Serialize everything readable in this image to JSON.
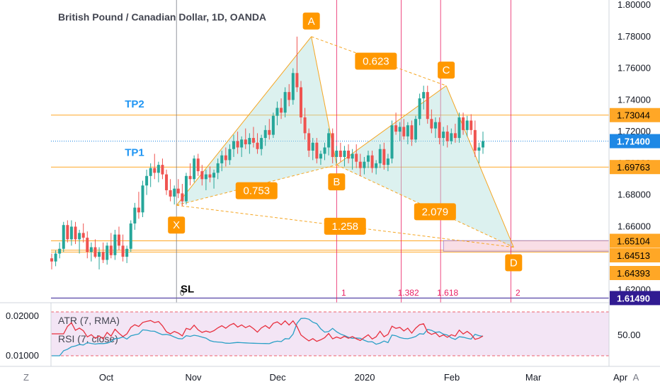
{
  "title": "British Pound / Canadian Dollar, 1D, OANDA",
  "colors": {
    "up": "#26a69a",
    "down": "#ef5350",
    "pattern_line": "#f5a623",
    "pattern_fill": "#b2dfdb",
    "label_bg": "#ff9800",
    "label_text": "#ffffff",
    "level_line": "#ffa726",
    "fib_line": "#e91e63",
    "tp_text": "#2196f3",
    "atr_line": "#2aa0c6",
    "rsi_line": "#e8303f",
    "rsi_band": "#f3e5f5",
    "current_price": "#1e88e5",
    "sl_line": "#311b92",
    "axis_text": "#131722"
  },
  "axis": {
    "price_ticks": [
      "1.80000",
      "1.78000",
      "1.76000",
      "1.74000",
      "1.72000",
      "1.70000",
      "1.68000",
      "1.66000",
      "1.64000",
      "1.62000"
    ],
    "time_labels": [
      "Oct",
      "Nov",
      "Dec",
      "2020",
      "Feb",
      "Mar",
      "Apr"
    ],
    "corner_left": "Z",
    "corner_right": "A"
  },
  "price_badges": [
    {
      "label": "1.73044",
      "style": "orange"
    },
    {
      "label": "1.71400",
      "style": "blue"
    },
    {
      "label": "1.69763",
      "style": "orange"
    },
    {
      "label": "1.65104",
      "style": "orange"
    },
    {
      "label": "1.64513",
      "style": "orange"
    },
    {
      "label": "1.64393",
      "style": "orange"
    },
    {
      "label": "1.61490",
      "style": "navy"
    }
  ],
  "pattern_points": [
    {
      "label": "X",
      "price": 1.6735
    },
    {
      "label": "A",
      "price": 1.78
    },
    {
      "label": "B",
      "price": 1.699
    },
    {
      "label": "C",
      "price": 1.749
    },
    {
      "label": "D",
      "price": 1.647
    }
  ],
  "ratios": [
    "0.623",
    "0.753",
    "2.079",
    "1.258"
  ],
  "tp_labels": [
    "TP2",
    "TP1"
  ],
  "sl_label": "SL",
  "fib_time_labels": [
    "0",
    "1",
    "1.382",
    "1.618",
    "2"
  ],
  "indicators": {
    "atr_label": "ATR (7, RMA)",
    "rsi_label": "RSI (7, close)",
    "left_ticks": [
      "0.02000",
      "0.01000"
    ],
    "right_tick": "50.00"
  },
  "chart_data": {
    "type": "candlestick",
    "title": "British Pound / Canadian Dollar, 1D, OANDA",
    "symbol": "GBPCAD",
    "interval": "1D",
    "source": "OANDA",
    "ylim": [
      1.605,
      1.805
    ],
    "x_range": [
      "2019-09-10",
      "2020-04-15"
    ],
    "last_price": 1.714,
    "harmonic_pattern": {
      "points": [
        {
          "label": "X",
          "date": "2019-10-26",
          "price": 1.6735
        },
        {
          "label": "A",
          "date": "2019-12-13",
          "price": 1.78
        },
        {
          "label": "B",
          "date": "2019-12-22",
          "price": 1.699
        },
        {
          "label": "C",
          "date": "2020-01-30",
          "price": 1.749
        },
        {
          "label": "D",
          "date": "2020-02-23",
          "price": 1.647
        }
      ],
      "ratios": [
        {
          "label": "0.623",
          "leg": "A-C"
        },
        {
          "label": "0.753",
          "leg": "X-B"
        },
        {
          "label": "2.079",
          "leg": "B-D"
        },
        {
          "label": "1.258",
          "leg": "X-D"
        }
      ]
    },
    "levels": [
      {
        "label": "TP2",
        "price": 1.73044
      },
      {
        "label": "TP1",
        "price": 1.69763
      },
      {
        "label": "",
        "price": 1.65104
      },
      {
        "label": "",
        "price": 1.64513
      },
      {
        "label": "",
        "price": 1.64393
      },
      {
        "label": "SL",
        "price": 1.6149
      }
    ],
    "fib_time_zones": [
      {
        "label": "0",
        "date": "2019-10-26"
      },
      {
        "label": "1",
        "date": "2019-12-22"
      },
      {
        "label": "1.382",
        "date": "2020-01-14"
      },
      {
        "label": "1.618",
        "date": "2020-01-28"
      },
      {
        "label": "2",
        "date": "2020-02-22"
      }
    ],
    "candles": [
      {
        "o": 1.64,
        "h": 1.643,
        "l": 1.633,
        "c": 1.638
      },
      {
        "o": 1.638,
        "h": 1.645,
        "l": 1.635,
        "c": 1.643
      },
      {
        "o": 1.643,
        "h": 1.65,
        "l": 1.64,
        "c": 1.646
      },
      {
        "o": 1.646,
        "h": 1.663,
        "l": 1.644,
        "c": 1.661
      },
      {
        "o": 1.661,
        "h": 1.664,
        "l": 1.65,
        "c": 1.652
      },
      {
        "o": 1.652,
        "h": 1.664,
        "l": 1.648,
        "c": 1.66
      },
      {
        "o": 1.66,
        "h": 1.663,
        "l": 1.649,
        "c": 1.652
      },
      {
        "o": 1.652,
        "h": 1.658,
        "l": 1.643,
        "c": 1.656
      },
      {
        "o": 1.656,
        "h": 1.662,
        "l": 1.65,
        "c": 1.653
      },
      {
        "o": 1.653,
        "h": 1.657,
        "l": 1.64,
        "c": 1.644
      },
      {
        "o": 1.644,
        "h": 1.65,
        "l": 1.638,
        "c": 1.647
      },
      {
        "o": 1.647,
        "h": 1.652,
        "l": 1.64,
        "c": 1.641
      },
      {
        "o": 1.641,
        "h": 1.647,
        "l": 1.633,
        "c": 1.644
      },
      {
        "o": 1.644,
        "h": 1.65,
        "l": 1.637,
        "c": 1.639
      },
      {
        "o": 1.639,
        "h": 1.65,
        "l": 1.636,
        "c": 1.648
      },
      {
        "o": 1.648,
        "h": 1.656,
        "l": 1.64,
        "c": 1.642
      },
      {
        "o": 1.642,
        "h": 1.658,
        "l": 1.639,
        "c": 1.655
      },
      {
        "o": 1.655,
        "h": 1.66,
        "l": 1.645,
        "c": 1.648
      },
      {
        "o": 1.648,
        "h": 1.655,
        "l": 1.638,
        "c": 1.641
      },
      {
        "o": 1.641,
        "h": 1.648,
        "l": 1.637,
        "c": 1.646
      },
      {
        "o": 1.646,
        "h": 1.664,
        "l": 1.644,
        "c": 1.662
      },
      {
        "o": 1.662,
        "h": 1.675,
        "l": 1.658,
        "c": 1.672
      },
      {
        "o": 1.672,
        "h": 1.682,
        "l": 1.665,
        "c": 1.669
      },
      {
        "o": 1.669,
        "h": 1.689,
        "l": 1.666,
        "c": 1.686
      },
      {
        "o": 1.686,
        "h": 1.696,
        "l": 1.68,
        "c": 1.692
      },
      {
        "o": 1.692,
        "h": 1.7,
        "l": 1.685,
        "c": 1.697
      },
      {
        "o": 1.697,
        "h": 1.706,
        "l": 1.69,
        "c": 1.694
      },
      {
        "o": 1.694,
        "h": 1.701,
        "l": 1.688,
        "c": 1.699
      },
      {
        "o": 1.699,
        "h": 1.703,
        "l": 1.69,
        "c": 1.693
      },
      {
        "o": 1.693,
        "h": 1.696,
        "l": 1.68,
        "c": 1.683
      },
      {
        "o": 1.683,
        "h": 1.69,
        "l": 1.676,
        "c": 1.679
      },
      {
        "o": 1.679,
        "h": 1.686,
        "l": 1.674,
        "c": 1.684
      },
      {
        "o": 1.684,
        "h": 1.69,
        "l": 1.678,
        "c": 1.681
      },
      {
        "o": 1.681,
        "h": 1.687,
        "l": 1.673,
        "c": 1.676
      },
      {
        "o": 1.676,
        "h": 1.694,
        "l": 1.674,
        "c": 1.692
      },
      {
        "o": 1.692,
        "h": 1.7,
        "l": 1.686,
        "c": 1.69
      },
      {
        "o": 1.69,
        "h": 1.705,
        "l": 1.688,
        "c": 1.703
      },
      {
        "o": 1.703,
        "h": 1.706,
        "l": 1.692,
        "c": 1.695
      },
      {
        "o": 1.695,
        "h": 1.699,
        "l": 1.686,
        "c": 1.69
      },
      {
        "o": 1.69,
        "h": 1.696,
        "l": 1.683,
        "c": 1.693
      },
      {
        "o": 1.693,
        "h": 1.698,
        "l": 1.688,
        "c": 1.691
      },
      {
        "o": 1.691,
        "h": 1.696,
        "l": 1.684,
        "c": 1.694
      },
      {
        "o": 1.694,
        "h": 1.703,
        "l": 1.69,
        "c": 1.7
      },
      {
        "o": 1.7,
        "h": 1.708,
        "l": 1.695,
        "c": 1.705
      },
      {
        "o": 1.705,
        "h": 1.71,
        "l": 1.698,
        "c": 1.702
      },
      {
        "o": 1.702,
        "h": 1.712,
        "l": 1.699,
        "c": 1.709
      },
      {
        "o": 1.709,
        "h": 1.718,
        "l": 1.704,
        "c": 1.714
      },
      {
        "o": 1.714,
        "h": 1.72,
        "l": 1.706,
        "c": 1.71
      },
      {
        "o": 1.71,
        "h": 1.717,
        "l": 1.704,
        "c": 1.715
      },
      {
        "o": 1.715,
        "h": 1.722,
        "l": 1.709,
        "c": 1.712
      },
      {
        "o": 1.712,
        "h": 1.719,
        "l": 1.706,
        "c": 1.716
      },
      {
        "o": 1.716,
        "h": 1.723,
        "l": 1.71,
        "c": 1.713
      },
      {
        "o": 1.713,
        "h": 1.719,
        "l": 1.706,
        "c": 1.709
      },
      {
        "o": 1.709,
        "h": 1.718,
        "l": 1.705,
        "c": 1.716
      },
      {
        "o": 1.716,
        "h": 1.724,
        "l": 1.711,
        "c": 1.721
      },
      {
        "o": 1.721,
        "h": 1.728,
        "l": 1.715,
        "c": 1.718
      },
      {
        "o": 1.718,
        "h": 1.732,
        "l": 1.716,
        "c": 1.73
      },
      {
        "o": 1.73,
        "h": 1.739,
        "l": 1.724,
        "c": 1.735
      },
      {
        "o": 1.735,
        "h": 1.741,
        "l": 1.728,
        "c": 1.732
      },
      {
        "o": 1.732,
        "h": 1.748,
        "l": 1.729,
        "c": 1.745
      },
      {
        "o": 1.745,
        "h": 1.75,
        "l": 1.736,
        "c": 1.74
      },
      {
        "o": 1.74,
        "h": 1.76,
        "l": 1.737,
        "c": 1.757
      },
      {
        "o": 1.757,
        "h": 1.78,
        "l": 1.745,
        "c": 1.748
      },
      {
        "o": 1.748,
        "h": 1.752,
        "l": 1.725,
        "c": 1.729
      },
      {
        "o": 1.729,
        "h": 1.735,
        "l": 1.715,
        "c": 1.719
      },
      {
        "o": 1.719,
        "h": 1.722,
        "l": 1.704,
        "c": 1.708
      },
      {
        "o": 1.708,
        "h": 1.716,
        "l": 1.702,
        "c": 1.713
      },
      {
        "o": 1.713,
        "h": 1.716,
        "l": 1.7,
        "c": 1.703
      },
      {
        "o": 1.703,
        "h": 1.708,
        "l": 1.699,
        "c": 1.706
      },
      {
        "o": 1.706,
        "h": 1.713,
        "l": 1.702,
        "c": 1.71
      },
      {
        "o": 1.71,
        "h": 1.722,
        "l": 1.705,
        "c": 1.719
      },
      {
        "o": 1.719,
        "h": 1.722,
        "l": 1.7,
        "c": 1.704
      },
      {
        "o": 1.704,
        "h": 1.711,
        "l": 1.7,
        "c": 1.708
      },
      {
        "o": 1.708,
        "h": 1.713,
        "l": 1.701,
        "c": 1.704
      },
      {
        "o": 1.704,
        "h": 1.711,
        "l": 1.698,
        "c": 1.708
      },
      {
        "o": 1.708,
        "h": 1.712,
        "l": 1.7,
        "c": 1.703
      },
      {
        "o": 1.703,
        "h": 1.709,
        "l": 1.696,
        "c": 1.706
      },
      {
        "o": 1.706,
        "h": 1.712,
        "l": 1.697,
        "c": 1.701
      },
      {
        "o": 1.701,
        "h": 1.706,
        "l": 1.692,
        "c": 1.697
      },
      {
        "o": 1.697,
        "h": 1.704,
        "l": 1.693,
        "c": 1.701
      },
      {
        "o": 1.701,
        "h": 1.708,
        "l": 1.697,
        "c": 1.705
      },
      {
        "o": 1.705,
        "h": 1.708,
        "l": 1.694,
        "c": 1.697
      },
      {
        "o": 1.697,
        "h": 1.702,
        "l": 1.693,
        "c": 1.7
      },
      {
        "o": 1.7,
        "h": 1.712,
        "l": 1.697,
        "c": 1.709
      },
      {
        "o": 1.709,
        "h": 1.713,
        "l": 1.696,
        "c": 1.699
      },
      {
        "o": 1.699,
        "h": 1.706,
        "l": 1.695,
        "c": 1.703
      },
      {
        "o": 1.703,
        "h": 1.727,
        "l": 1.7,
        "c": 1.724
      },
      {
        "o": 1.724,
        "h": 1.732,
        "l": 1.718,
        "c": 1.72
      },
      {
        "o": 1.72,
        "h": 1.726,
        "l": 1.714,
        "c": 1.723
      },
      {
        "o": 1.723,
        "h": 1.728,
        "l": 1.715,
        "c": 1.717
      },
      {
        "o": 1.717,
        "h": 1.726,
        "l": 1.712,
        "c": 1.724
      },
      {
        "o": 1.724,
        "h": 1.727,
        "l": 1.711,
        "c": 1.715
      },
      {
        "o": 1.715,
        "h": 1.73,
        "l": 1.713,
        "c": 1.728
      },
      {
        "o": 1.728,
        "h": 1.744,
        "l": 1.724,
        "c": 1.741
      },
      {
        "o": 1.741,
        "h": 1.749,
        "l": 1.734,
        "c": 1.745
      },
      {
        "o": 1.745,
        "h": 1.749,
        "l": 1.725,
        "c": 1.728
      },
      {
        "o": 1.728,
        "h": 1.734,
        "l": 1.719,
        "c": 1.722
      },
      {
        "o": 1.722,
        "h": 1.729,
        "l": 1.716,
        "c": 1.726
      },
      {
        "o": 1.726,
        "h": 1.729,
        "l": 1.712,
        "c": 1.716
      },
      {
        "o": 1.716,
        "h": 1.723,
        "l": 1.711,
        "c": 1.72
      },
      {
        "o": 1.72,
        "h": 1.724,
        "l": 1.71,
        "c": 1.714
      },
      {
        "o": 1.714,
        "h": 1.722,
        "l": 1.712,
        "c": 1.719
      },
      {
        "o": 1.719,
        "h": 1.725,
        "l": 1.713,
        "c": 1.716
      },
      {
        "o": 1.716,
        "h": 1.732,
        "l": 1.713,
        "c": 1.729
      },
      {
        "o": 1.729,
        "h": 1.732,
        "l": 1.718,
        "c": 1.721
      },
      {
        "o": 1.721,
        "h": 1.73,
        "l": 1.717,
        "c": 1.727
      },
      {
        "o": 1.727,
        "h": 1.731,
        "l": 1.718,
        "c": 1.721
      },
      {
        "o": 1.721,
        "h": 1.727,
        "l": 1.704,
        "c": 1.708
      },
      {
        "o": 1.708,
        "h": 1.713,
        "l": 1.7,
        "c": 1.71
      },
      {
        "o": 1.71,
        "h": 1.72,
        "l": 1.706,
        "c": 1.714
      }
    ]
  }
}
